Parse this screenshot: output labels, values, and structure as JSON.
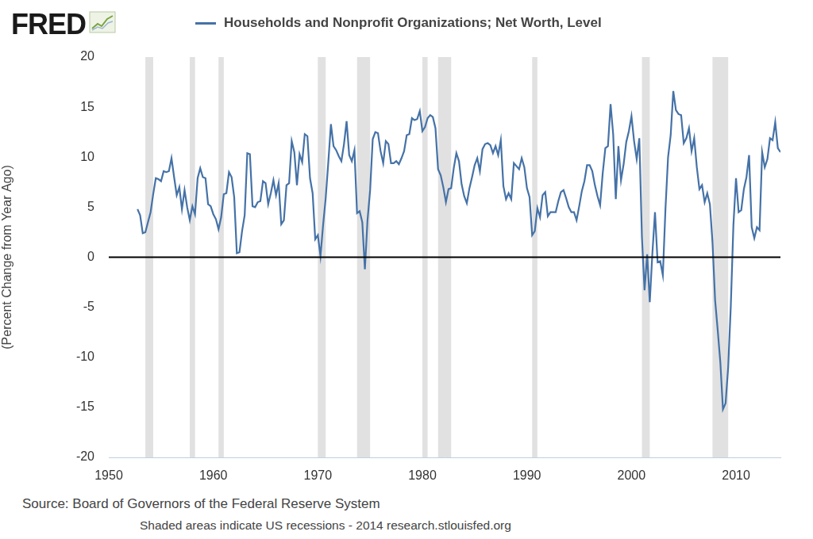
{
  "chart_data": {
    "type": "line",
    "logo": "FRED",
    "y_label": "(Percent Change from Year Ago)",
    "source": "Source: Board of Governors of the Federal Reserve System",
    "note": "Shaded areas indicate US recessions - 2014 research.stlouisfed.org",
    "legend": "top",
    "grid": false,
    "xlim": [
      1950,
      2014.25
    ],
    "xticks": [
      1950,
      1960,
      1970,
      1980,
      1990,
      2000,
      2010
    ],
    "ylim": [
      -20,
      20
    ],
    "yticks": [
      -20,
      -15,
      -10,
      -5,
      0,
      5,
      10,
      15,
      20
    ],
    "hline": 0,
    "recessions": [
      [
        1953.5,
        1954.25
      ],
      [
        1957.75,
        1958.25
      ],
      [
        1960.5,
        1961.0
      ],
      [
        1970.0,
        1970.75
      ],
      [
        1973.75,
        1975.0
      ],
      [
        1980.0,
        1980.5
      ],
      [
        1981.5,
        1982.75
      ],
      [
        1990.5,
        1991.0
      ],
      [
        2001.0,
        2001.75
      ],
      [
        2007.75,
        2009.25
      ]
    ],
    "x": [
      1952.75,
      1953,
      1953.25,
      1953.5,
      1953.75,
      1954,
      1954.25,
      1954.5,
      1954.75,
      1955,
      1955.25,
      1955.5,
      1955.75,
      1956,
      1956.25,
      1956.5,
      1956.75,
      1957,
      1957.25,
      1957.5,
      1957.75,
      1958,
      1958.25,
      1958.5,
      1958.75,
      1959,
      1959.25,
      1959.5,
      1959.75,
      1960,
      1960.25,
      1960.5,
      1960.75,
      1961,
      1961.25,
      1961.5,
      1961.75,
      1962,
      1962.25,
      1962.5,
      1962.75,
      1963,
      1963.25,
      1963.5,
      1963.75,
      1964,
      1964.25,
      1964.5,
      1964.75,
      1965,
      1965.25,
      1965.5,
      1965.75,
      1966,
      1966.25,
      1966.5,
      1966.75,
      1967,
      1967.25,
      1967.5,
      1967.75,
      1968,
      1968.25,
      1968.5,
      1968.75,
      1969,
      1969.25,
      1969.5,
      1969.75,
      1970,
      1970.25,
      1970.5,
      1970.75,
      1971,
      1971.25,
      1971.5,
      1971.75,
      1972,
      1972.25,
      1972.5,
      1972.75,
      1973,
      1973.25,
      1973.5,
      1973.75,
      1974,
      1974.25,
      1974.5,
      1974.75,
      1975,
      1975.25,
      1975.5,
      1975.75,
      1976,
      1976.25,
      1976.5,
      1976.75,
      1977,
      1977.25,
      1977.5,
      1977.75,
      1978,
      1978.25,
      1978.5,
      1978.75,
      1979,
      1979.25,
      1979.5,
      1979.75,
      1980,
      1980.25,
      1980.5,
      1980.75,
      1981,
      1981.25,
      1981.5,
      1981.75,
      1982,
      1982.25,
      1982.5,
      1982.75,
      1983,
      1983.25,
      1983.5,
      1983.75,
      1984,
      1984.25,
      1984.5,
      1984.75,
      1985,
      1985.25,
      1985.5,
      1985.75,
      1986,
      1986.25,
      1986.5,
      1986.75,
      1987,
      1987.25,
      1987.5,
      1987.75,
      1988,
      1988.25,
      1988.5,
      1988.75,
      1989,
      1989.25,
      1989.5,
      1989.75,
      1990,
      1990.25,
      1990.5,
      1990.75,
      1991,
      1991.25,
      1991.5,
      1991.75,
      1992,
      1992.25,
      1992.5,
      1992.75,
      1993,
      1993.25,
      1993.5,
      1993.75,
      1994,
      1994.25,
      1994.5,
      1994.75,
      1995,
      1995.25,
      1995.5,
      1995.75,
      1996,
      1996.25,
      1996.5,
      1996.75,
      1997,
      1997.25,
      1997.5,
      1997.75,
      1998,
      1998.25,
      1998.5,
      1998.75,
      1999,
      1999.25,
      1999.5,
      1999.75,
      2000,
      2000.25,
      2000.5,
      2000.75,
      2001,
      2001.25,
      2001.5,
      2001.75,
      2002,
      2002.25,
      2002.5,
      2002.75,
      2003,
      2003.25,
      2003.5,
      2003.75,
      2004,
      2004.25,
      2004.5,
      2004.75,
      2005,
      2005.25,
      2005.5,
      2005.75,
      2006,
      2006.25,
      2006.5,
      2006.75,
      2007,
      2007.25,
      2007.5,
      2007.75,
      2008,
      2008.25,
      2008.5,
      2008.75,
      2009,
      2009.25,
      2009.5,
      2009.75,
      2010,
      2010.25,
      2010.5,
      2010.75,
      2011,
      2011.25,
      2011.5,
      2011.75,
      2012,
      2012.25,
      2012.5,
      2012.75,
      2013,
      2013.25,
      2013.5,
      2013.75,
      2014,
      2014.25
    ],
    "series": [
      {
        "name": "Households and Nonprofit Organizations; Net Worth, Level",
        "color": "#4572a7",
        "values": [
          4.8,
          4.2,
          2.4,
          2.5,
          3.5,
          4.5,
          6.3,
          7.9,
          7.8,
          7.6,
          8.6,
          8.5,
          8.6,
          9.9,
          8.0,
          6.2,
          7.0,
          4.8,
          6.7,
          5.0,
          3.7,
          5.1,
          4.3,
          7.9,
          8.9,
          8.0,
          7.9,
          5.3,
          5.1,
          4.3,
          3.8,
          2.8,
          4.0,
          6.3,
          6.4,
          8.5,
          8.0,
          6.0,
          0.4,
          0.5,
          2.6,
          4.2,
          10.4,
          10.3,
          5.1,
          5.0,
          5.5,
          5.6,
          7.6,
          7.4,
          5.3,
          6.4,
          7.7,
          6.2,
          7.4,
          3.3,
          3.7,
          7.2,
          7.4,
          11.6,
          10.5,
          7.2,
          10.3,
          9.5,
          12.3,
          12.1,
          7.9,
          6.4,
          1.8,
          2.2,
          0.1,
          3.2,
          5.9,
          9.5,
          13.3,
          11.1,
          10.7,
          10.1,
          9.6,
          11.3,
          13.6,
          10.2,
          9.6,
          10.7,
          4.4,
          4.6,
          3.5,
          -1.2,
          3.7,
          6.7,
          11.8,
          12.5,
          12.4,
          10.6,
          9.4,
          11.6,
          11.3,
          9.4,
          9.4,
          9.6,
          9.3,
          9.9,
          10.6,
          12.2,
          12.3,
          13.9,
          13.7,
          13.8,
          14.6,
          12.6,
          13.0,
          13.9,
          14.2,
          14.0,
          12.9,
          8.8,
          8.2,
          7.0,
          5.5,
          6.8,
          6.9,
          8.9,
          10.4,
          9.6,
          7.3,
          6.1,
          5.4,
          6.9,
          8.0,
          9.2,
          9.9,
          8.6,
          10.8,
          11.3,
          11.4,
          11.2,
          10.4,
          11.1,
          10.2,
          11.7,
          7.1,
          5.8,
          6.4,
          5.8,
          9.4,
          9.1,
          8.8,
          9.9,
          9.0,
          6.9,
          6.0,
          2.2,
          2.6,
          4.9,
          4.0,
          6.2,
          6.5,
          4.1,
          4.5,
          4.5,
          4.5,
          5.6,
          6.5,
          6.7,
          5.9,
          5.0,
          4.5,
          4.5,
          3.7,
          5.1,
          6.6,
          7.6,
          9.2,
          9.2,
          8.6,
          7.2,
          6.1,
          5.2,
          8.4,
          10.9,
          11.1,
          15.3,
          12.3,
          5.8,
          11.1,
          7.7,
          9.3,
          11.5,
          12.6,
          14.1,
          11.6,
          9.8,
          11.9,
          2.0,
          -3.3,
          0.3,
          -4.5,
          0.4,
          4.5,
          -0.5,
          -0.4,
          -1.8,
          4.8,
          10.0,
          12.2,
          16.6,
          14.7,
          14.3,
          14.2,
          11.4,
          11.9,
          12.9,
          10.6,
          11.9,
          9.0,
          6.8,
          7.2,
          5.5,
          6.4,
          5.3,
          1.5,
          -4.3,
          -7.3,
          -10.5,
          -15.2,
          -14.6,
          -11.0,
          -4.9,
          3.2,
          7.9,
          4.5,
          4.7,
          6.8,
          8.0,
          10.2,
          3.0,
          1.9,
          3.0,
          2.7,
          10.5,
          9.0,
          9.8,
          11.9,
          11.7,
          13.5,
          10.9,
          10.5
        ]
      }
    ]
  }
}
